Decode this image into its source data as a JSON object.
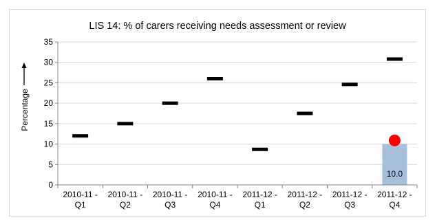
{
  "chart_data": {
    "type": "bar",
    "title": "LIS 14: % of carers receiving needs assessment or review",
    "xlabel": "",
    "ylabel": "Percentage",
    "ylim": [
      0,
      35
    ],
    "y_ticks": [
      0,
      5,
      10,
      15,
      20,
      25,
      30,
      35
    ],
    "grid": true,
    "categories": [
      [
        "2010-11 -",
        "Q1"
      ],
      [
        "2010-11 -",
        "Q2"
      ],
      [
        "2010-11 -",
        "Q3"
      ],
      [
        "2010-11 -",
        "Q4"
      ],
      [
        "2011-12 -",
        "Q1"
      ],
      [
        "2011-12 -",
        "Q2"
      ],
      [
        "2011-12 -",
        "Q3"
      ],
      [
        "2011-12 -",
        "Q4"
      ]
    ],
    "series": [
      {
        "kind": "bar",
        "color": "#a6bfdb",
        "values": [
          null,
          null,
          null,
          null,
          null,
          null,
          null,
          10.0
        ],
        "data_labels": [
          "",
          "",
          "",
          "",
          "",
          "",
          "",
          "10.0"
        ]
      },
      {
        "kind": "dash-marker",
        "color": "#000000",
        "values": [
          12.0,
          15.0,
          20.0,
          26.0,
          8.7,
          17.5,
          24.6,
          30.8
        ]
      },
      {
        "kind": "dot-marker",
        "color": "#ff0000",
        "values": [
          null,
          null,
          null,
          null,
          null,
          null,
          null,
          10.9
        ]
      }
    ]
  }
}
